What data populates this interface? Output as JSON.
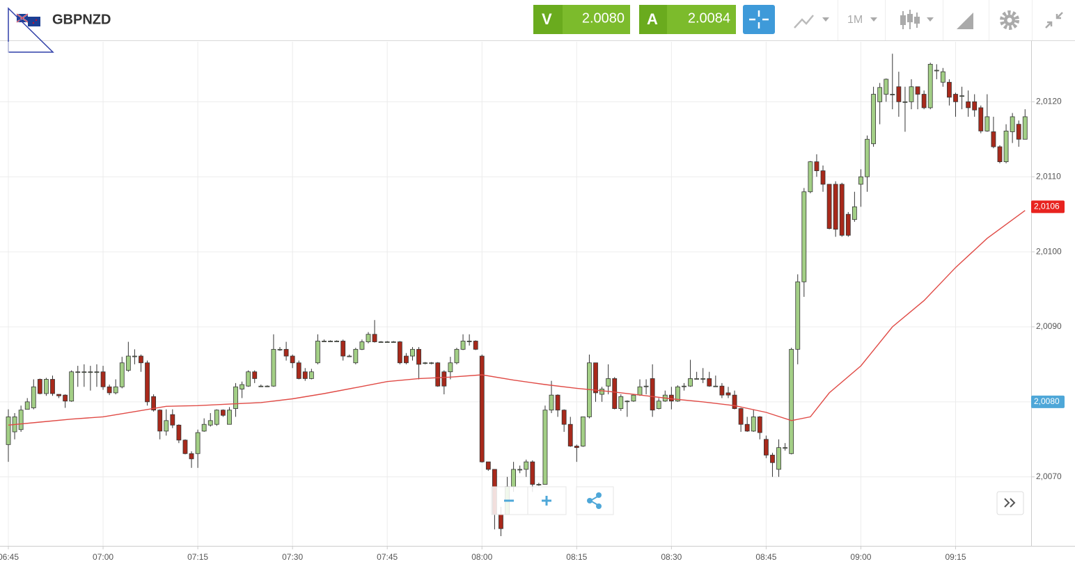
{
  "toolbar": {
    "symbol": "GBPNZD",
    "sell_label": "V",
    "sell_price": "2.0080",
    "buy_label": "A",
    "buy_price": "2.0084",
    "timeframe": "1M"
  },
  "chart_data": {
    "type": "candlestick",
    "up_color": "#a3cf86",
    "down_color": "#a8291b",
    "grid": true,
    "x": [
      "06:45",
      "06:46",
      "06:47",
      "06:48",
      "06:49",
      "06:50",
      "06:51",
      "06:52",
      "06:53",
      "06:54",
      "06:55",
      "06:56",
      "06:57",
      "06:58",
      "06:59",
      "07:00",
      "07:01",
      "07:02",
      "07:03",
      "07:04",
      "07:05",
      "07:06",
      "07:07",
      "07:08",
      "07:09",
      "07:10",
      "07:11",
      "07:12",
      "07:13",
      "07:14",
      "07:15",
      "07:16",
      "07:17",
      "07:18",
      "07:19",
      "07:20",
      "07:21",
      "07:22",
      "07:23",
      "07:24",
      "07:25",
      "07:26",
      "07:27",
      "07:28",
      "07:29",
      "07:30",
      "07:31",
      "07:32",
      "07:33",
      "07:34",
      "07:35",
      "07:36",
      "07:37",
      "07:38",
      "07:39",
      "07:40",
      "07:41",
      "07:42",
      "07:43",
      "07:44",
      "07:45",
      "07:46",
      "07:47",
      "07:48",
      "07:49",
      "07:50",
      "07:51",
      "07:52",
      "07:53",
      "07:54",
      "07:55",
      "07:56",
      "07:57",
      "07:58",
      "07:59",
      "08:00",
      "08:01",
      "08:02",
      "08:03",
      "08:04",
      "08:05",
      "08:06",
      "08:07",
      "08:08",
      "08:09",
      "08:10",
      "08:11",
      "08:12",
      "08:13",
      "08:14",
      "08:15",
      "08:16",
      "08:17",
      "08:18",
      "08:19",
      "08:20",
      "08:21",
      "08:22",
      "08:23",
      "08:24",
      "08:25",
      "08:26",
      "08:27",
      "08:28",
      "08:29",
      "08:30",
      "08:31",
      "08:32",
      "08:33",
      "08:34",
      "08:35",
      "08:36",
      "08:37",
      "08:38",
      "08:39",
      "08:40",
      "08:41",
      "08:42",
      "08:43",
      "08:44",
      "08:45",
      "08:46",
      "08:47",
      "08:48",
      "08:49",
      "08:50",
      "08:51",
      "08:52",
      "08:53",
      "08:54",
      "08:55",
      "08:56",
      "08:57",
      "08:58",
      "08:59",
      "09:00",
      "09:01",
      "09:02",
      "09:03",
      "09:04",
      "09:05",
      "09:06",
      "09:07",
      "09:08",
      "09:09",
      "09:10",
      "09:11",
      "09:12",
      "09:13",
      "09:14",
      "09:15",
      "09:16",
      "09:17",
      "09:18",
      "09:19",
      "09:20",
      "09:21",
      "09:22",
      "09:23",
      "09:24",
      "09:25",
      "09:26"
    ],
    "ohlc": [
      [
        2.00743,
        2.0079,
        2.0072,
        2.0078
      ],
      [
        2.0076,
        2.00785,
        2.0075,
        2.0078
      ],
      [
        2.00763,
        2.00795,
        2.0076,
        2.00789
      ],
      [
        2.0079,
        2.00805,
        2.0079,
        2.008
      ],
      [
        2.00792,
        2.0083,
        2.0079,
        2.0082
      ],
      [
        2.0083,
        2.00831,
        2.0081,
        2.00811
      ],
      [
        2.00811,
        2.00832,
        2.00808,
        2.0083
      ],
      [
        2.0083,
        2.00835,
        2.00808,
        2.00811
      ],
      [
        2.0081,
        2.0081,
        2.00805,
        2.00808
      ],
      [
        2.00809,
        2.0081,
        2.00792,
        2.00801
      ],
      [
        2.00801,
        2.00842,
        2.008,
        2.0084
      ],
      [
        2.0084,
        2.00848,
        2.0082,
        2.0084
      ],
      [
        2.0084,
        2.0085,
        2.0082,
        2.0084
      ],
      [
        2.0084,
        2.00848,
        2.00815,
        2.0084
      ],
      [
        2.0084,
        2.0085,
        2.0082,
        2.0084
      ],
      [
        2.0084,
        2.00848,
        2.00816,
        2.0082
      ],
      [
        2.0082,
        2.00823,
        2.00809,
        2.00812
      ],
      [
        2.00812,
        2.0083,
        2.0081,
        2.0082
      ],
      [
        2.0082,
        2.0086,
        2.00818,
        2.00852
      ],
      [
        2.00842,
        2.0088,
        2.0084,
        2.00861
      ],
      [
        2.00861,
        2.0087,
        2.0085,
        2.00861
      ],
      [
        2.00861,
        2.00863,
        2.0084,
        2.00852
      ],
      [
        2.00852,
        2.00855,
        2.00795,
        2.008
      ],
      [
        2.00807,
        2.0081,
        2.00787,
        2.00789
      ],
      [
        2.00789,
        2.0079,
        2.0075,
        2.00761
      ],
      [
        2.00761,
        2.0079,
        2.00755,
        2.00775
      ],
      [
        2.00783,
        2.0079,
        2.00765,
        2.00769
      ],
      [
        2.00769,
        2.0077,
        2.00745,
        2.00749
      ],
      [
        2.00749,
        2.0075,
        2.0073,
        2.00731
      ],
      [
        2.00731,
        2.00734,
        2.00712,
        2.00724
      ],
      [
        2.00731,
        2.00763,
        2.00712,
        2.00759
      ],
      [
        2.00761,
        2.00778,
        2.0076,
        2.0077
      ],
      [
        2.00769,
        2.00785,
        2.00767,
        2.00775
      ],
      [
        2.0077,
        2.0079,
        2.00768,
        2.00789
      ],
      [
        2.00789,
        2.0079,
        2.0078,
        2.00782
      ],
      [
        2.0077,
        2.00793,
        2.0077,
        2.00789
      ],
      [
        2.00791,
        2.00825,
        2.0078,
        2.0082
      ],
      [
        2.00817,
        2.00827,
        2.00805,
        2.00823
      ],
      [
        2.00821,
        2.00842,
        2.0082,
        2.0084
      ],
      [
        2.0084,
        2.00842,
        2.00825,
        2.00831
      ],
      [
        2.00821,
        2.00823,
        2.0082,
        2.00821
      ],
      [
        2.00821,
        2.00822,
        2.0082,
        2.00821
      ],
      [
        2.00821,
        2.0089,
        2.0082,
        2.0087
      ],
      [
        2.0087,
        2.00873,
        2.00868,
        2.0087
      ],
      [
        2.0087,
        2.0088,
        2.00855,
        2.00861
      ],
      [
        2.00861,
        2.00863,
        2.00845,
        2.00852
      ],
      [
        2.00852,
        2.00855,
        2.0083,
        2.00831
      ],
      [
        2.0084,
        2.00845,
        2.00828,
        2.00831
      ],
      [
        2.00831,
        2.00844,
        2.0083,
        2.0084
      ],
      [
        2.00852,
        2.0089,
        2.0085,
        2.00881
      ],
      [
        2.00881,
        2.00883,
        2.0088,
        2.00881
      ],
      [
        2.00881,
        2.00882,
        2.0088,
        2.00881
      ],
      [
        2.00881,
        2.00882,
        2.0088,
        2.00881
      ],
      [
        2.00881,
        2.00883,
        2.00855,
        2.00861
      ],
      [
        2.00861,
        2.00863,
        2.0086,
        2.00861
      ],
      [
        2.00852,
        2.00872,
        2.0085,
        2.0087
      ],
      [
        2.0087,
        2.00883,
        2.00869,
        2.0088
      ],
      [
        2.0088,
        2.00893,
        2.00878,
        2.0089
      ],
      [
        2.0089,
        2.00909,
        2.00879,
        2.0088
      ],
      [
        2.0088,
        2.00881,
        2.00879,
        2.0088
      ],
      [
        2.0088,
        2.00881,
        2.00879,
        2.0088
      ],
      [
        2.0088,
        2.00881,
        2.00879,
        2.0088
      ],
      [
        2.0088,
        2.00881,
        2.0085,
        2.00852
      ],
      [
        2.00861,
        2.00865,
        2.0085,
        2.00852
      ],
      [
        2.00861,
        2.00873,
        2.00855,
        2.0087
      ],
      [
        2.0087,
        2.00873,
        2.0083,
        2.0085
      ],
      [
        2.00852,
        2.00853,
        2.0085,
        2.00852
      ],
      [
        2.00852,
        2.00853,
        2.0085,
        2.00852
      ],
      [
        2.00852,
        2.00853,
        2.0082,
        2.00821
      ],
      [
        2.0084,
        2.00842,
        2.0081,
        2.00821
      ],
      [
        2.0084,
        2.0086,
        2.0083,
        2.00852
      ],
      [
        2.00852,
        2.00872,
        2.0085,
        2.0087
      ],
      [
        2.0087,
        2.0089,
        2.00869,
        2.00881
      ],
      [
        2.00881,
        2.0089,
        2.00875,
        2.00881
      ],
      [
        2.00881,
        2.00882,
        2.00869,
        2.0087
      ],
      [
        2.00861,
        2.00863,
        2.00719,
        2.0072
      ],
      [
        2.0072,
        2.0072,
        2.00708,
        2.0071
      ],
      [
        2.0071,
        2.0071,
        2.0063,
        2.0065
      ],
      [
        2.0065,
        2.0066,
        2.00621,
        2.00631
      ],
      [
        2.0065,
        2.007,
        2.0065,
        2.00687
      ],
      [
        2.00687,
        2.0072,
        2.0068,
        2.0071
      ],
      [
        2.0071,
        2.00715,
        2.00705,
        2.0071
      ],
      [
        2.0071,
        2.00723,
        2.007,
        2.0072
      ],
      [
        2.0072,
        2.00722,
        2.0068,
        2.0069
      ],
      [
        2.0069,
        2.00692,
        2.00688,
        2.0069
      ],
      [
        2.0069,
        2.00795,
        2.0069,
        2.00789
      ],
      [
        2.00789,
        2.00828,
        2.00785,
        2.00809
      ],
      [
        2.00809,
        2.0081,
        2.0078,
        2.00789
      ],
      [
        2.00789,
        2.0079,
        2.0076,
        2.0077
      ],
      [
        2.0077,
        2.0078,
        2.0074,
        2.00741
      ],
      [
        2.00741,
        2.00743,
        2.0072,
        2.00739
      ],
      [
        2.00741,
        2.0078,
        2.0074,
        2.0078
      ],
      [
        2.0078,
        2.00863,
        2.00778,
        2.00852
      ],
      [
        2.00852,
        2.00852,
        2.008,
        2.00812
      ],
      [
        2.0081,
        2.0082,
        2.008,
        2.00817
      ],
      [
        2.00821,
        2.0085,
        2.0081,
        2.00831
      ],
      [
        2.00831,
        2.00833,
        2.0079,
        2.00791
      ],
      [
        2.00791,
        2.0081,
        2.00788,
        2.00807
      ],
      [
        2.00801,
        2.00802,
        2.0078,
        2.00801
      ],
      [
        2.00801,
        2.0081,
        2.008,
        2.00809
      ],
      [
        2.00809,
        2.0083,
        2.00808,
        2.0082
      ],
      [
        2.00821,
        2.0083,
        2.0081,
        2.00821
      ],
      [
        2.00831,
        2.0085,
        2.0078,
        2.00789
      ],
      [
        2.00791,
        2.00805,
        2.0079,
        2.00801
      ],
      [
        2.00801,
        2.00815,
        2.008,
        2.00809
      ],
      [
        2.00809,
        2.0082,
        2.0079,
        2.00801
      ],
      [
        2.00801,
        2.00822,
        2.008,
        2.0082
      ],
      [
        2.00821,
        2.00825,
        2.00815,
        2.00821
      ],
      [
        2.00821,
        2.00856,
        2.0082,
        2.00831
      ],
      [
        2.00831,
        2.0084,
        2.0083,
        2.00831
      ],
      [
        2.00831,
        2.00845,
        2.00825,
        2.00831
      ],
      [
        2.00831,
        2.0084,
        2.0082,
        2.00821
      ],
      [
        2.00821,
        2.00835,
        2.0082,
        2.00821
      ],
      [
        2.00821,
        2.00825,
        2.00805,
        2.00809
      ],
      [
        2.00812,
        2.0082,
        2.00805,
        2.00809
      ],
      [
        2.00809,
        2.00815,
        2.0079,
        2.00791
      ],
      [
        2.00791,
        2.00792,
        2.0076,
        2.0077
      ],
      [
        2.0077,
        2.0078,
        2.0076,
        2.00761
      ],
      [
        2.00761,
        2.0079,
        2.0076,
        2.0078
      ],
      [
        2.0078,
        2.00781,
        2.0075,
        2.00759
      ],
      [
        2.0075,
        2.00755,
        2.00725,
        2.00729
      ],
      [
        2.00729,
        2.00732,
        2.007,
        2.00719
      ],
      [
        2.0071,
        2.0075,
        2.007,
        2.00739
      ],
      [
        2.00739,
        2.00745,
        2.00735,
        2.00739
      ],
      [
        2.00731,
        2.00872,
        2.0073,
        2.0087
      ],
      [
        2.0087,
        2.0097,
        2.0085,
        2.0096
      ],
      [
        2.0096,
        2.01085,
        2.0094,
        2.0108
      ],
      [
        2.0108,
        2.01121,
        2.01078,
        2.0112
      ],
      [
        2.0112,
        2.0113,
        2.011,
        2.01108
      ],
      [
        2.01108,
        2.01115,
        2.0108,
        2.0109
      ],
      [
        2.0109,
        2.0109,
        2.0103,
        2.01031
      ],
      [
        2.0109,
        2.01094,
        2.0102,
        2.0103
      ],
      [
        2.0109,
        2.01092,
        2.0102,
        2.01022
      ],
      [
        2.0105,
        2.01053,
        2.0102,
        2.01022
      ],
      [
        2.01043,
        2.0108,
        2.0104,
        2.0106
      ],
      [
        2.0109,
        2.0111,
        2.0106,
        2.011
      ],
      [
        2.011,
        2.01155,
        2.0108,
        2.0115
      ],
      [
        2.01144,
        2.0122,
        2.0114,
        2.0121
      ],
      [
        2.012,
        2.01225,
        2.0117,
        2.01219
      ],
      [
        2.0121,
        2.01231,
        2.012,
        2.0123
      ],
      [
        2.0121,
        2.01264,
        2.0119,
        2.0121
      ],
      [
        2.0122,
        2.0124,
        2.0118,
        2.012
      ],
      [
        2.012,
        2.0122,
        2.0116,
        2.012
      ],
      [
        2.012,
        2.0123,
        2.0119,
        2.0122
      ],
      [
        2.0122,
        2.0122,
        2.0119,
        2.0121
      ],
      [
        2.0121,
        2.01215,
        2.0119,
        2.01192
      ],
      [
        2.01192,
        2.01252,
        2.0119,
        2.0125
      ],
      [
        2.01242,
        2.0125,
        2.0123,
        2.01242
      ],
      [
        2.01226,
        2.01245,
        2.0122,
        2.0124
      ],
      [
        2.01226,
        2.0123,
        2.01195,
        2.01206
      ],
      [
        2.0121,
        2.01212,
        2.0118,
        2.012
      ],
      [
        2.01208,
        2.0122,
        2.0119,
        2.01208
      ],
      [
        2.012,
        2.01215,
        2.0118,
        2.01192
      ],
      [
        2.012,
        2.0121,
        2.0118,
        2.01189
      ],
      [
        2.01192,
        2.01195,
        2.01158,
        2.01161
      ],
      [
        2.01161,
        2.0121,
        2.0116,
        2.0118
      ],
      [
        2.0116,
        2.0118,
        2.01138,
        2.0114
      ],
      [
        2.0114,
        2.01142,
        2.01118,
        2.0112
      ],
      [
        2.0112,
        2.0117,
        2.01118,
        2.01161
      ],
      [
        2.0116,
        2.01185,
        2.01145,
        2.0118
      ],
      [
        2.0117,
        2.01175,
        2.0114,
        2.0115
      ],
      [
        2.0115,
        2.0119,
        2.0115,
        2.0118
      ]
    ],
    "ma": {
      "color": "#e04a45",
      "x": [
        "06:45",
        "06:50",
        "06:55",
        "07:00",
        "07:05",
        "07:10",
        "07:15",
        "07:20",
        "07:25",
        "07:30",
        "07:35",
        "07:40",
        "07:45",
        "07:50",
        "07:55",
        "08:00",
        "08:05",
        "08:10",
        "08:15",
        "08:20",
        "08:25",
        "08:30",
        "08:35",
        "08:40",
        "08:45",
        "08:49",
        "08:52",
        "08:55",
        "09:00",
        "09:05",
        "09:10",
        "09:15",
        "09:20",
        "09:26"
      ],
      "values": [
        2.00769,
        2.00773,
        2.00777,
        2.0078,
        2.00787,
        2.00794,
        2.00795,
        2.00797,
        2.00799,
        2.00804,
        2.00811,
        2.00819,
        2.00827,
        2.00831,
        2.00833,
        2.00836,
        2.00829,
        2.00823,
        2.00818,
        2.00814,
        2.00809,
        2.00804,
        2.008,
        2.00795,
        2.00786,
        2.00775,
        2.0078,
        2.00812,
        2.00848,
        2.009,
        2.00935,
        2.00979,
        2.01018,
        2.01055
      ]
    },
    "ylim": [
      2.00608,
      2.0128
    ],
    "yticks": [
      {
        "value": 2.007,
        "label": "2,0070"
      },
      {
        "value": 2.008,
        "label": "2,0080"
      },
      {
        "value": 2.009,
        "label": "2,0090"
      },
      {
        "value": 2.01,
        "label": "2,0100"
      },
      {
        "value": 2.011,
        "label": "2,0110"
      },
      {
        "value": 2.012,
        "label": "2,0120"
      }
    ],
    "xticks": [
      "06:45",
      "07:00",
      "07:15",
      "07:30",
      "07:45",
      "08:00",
      "08:15",
      "08:30",
      "08:45",
      "09:00",
      "09:15"
    ],
    "price_labels": [
      {
        "value": 2.0106,
        "label": "2,0106",
        "color": "#e8231f"
      },
      {
        "value": 2.008,
        "label": "2,0080",
        "color": "#4ea7d8"
      }
    ]
  }
}
